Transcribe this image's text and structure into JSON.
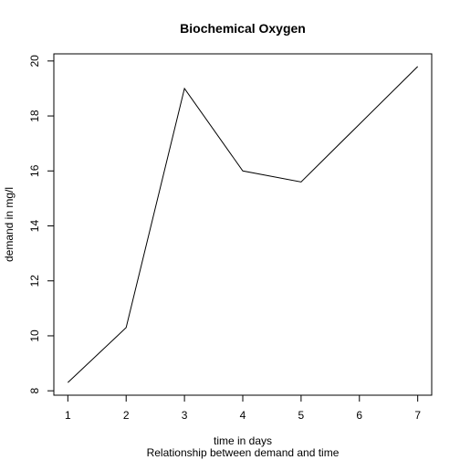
{
  "chart_data": {
    "type": "line",
    "title": "Biochemical Oxygen",
    "xlabel": "time in days",
    "ylabel": "demand in mg/l",
    "subtitle": "Relationship between demand and time",
    "x": [
      1,
      2,
      3,
      4,
      5,
      6,
      7
    ],
    "series": [
      {
        "values": [
          8.3,
          10.3,
          19.0,
          16.0,
          15.6,
          17.7,
          19.8
        ]
      }
    ],
    "xlim": [
      0.76,
      7.24
    ],
    "ylim": [
      7.84,
      20.26
    ],
    "xticks": [
      1,
      2,
      3,
      4,
      5,
      6,
      7
    ],
    "yticks": [
      8,
      10,
      12,
      14,
      16,
      18,
      20
    ],
    "grid": false,
    "line_color": "#000000"
  }
}
